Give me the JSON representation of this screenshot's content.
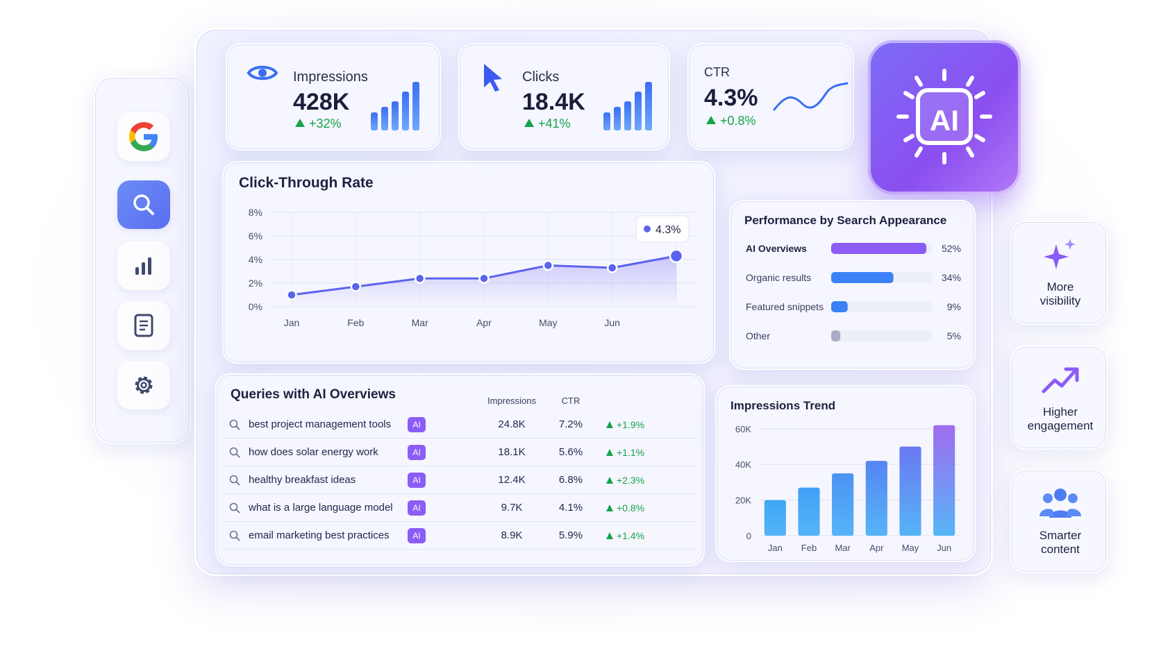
{
  "kpis": [
    {
      "label": "Impressions",
      "value": "428K",
      "change": "+32%"
    },
    {
      "label": "Clicks",
      "value": "18.4K",
      "change": "+41%"
    },
    {
      "label": "CTR",
      "value": "4.3%",
      "change": "+0.8%"
    }
  ],
  "ai_badge": "AI",
  "chart_data": [
    {
      "type": "line",
      "title": "Click-Through Rate",
      "categories": [
        "Jan",
        "Feb",
        "Mar",
        "Apr",
        "May",
        "Jun",
        null
      ],
      "values": [
        1.0,
        1.7,
        2.4,
        2.4,
        3.5,
        3.3,
        4.3
      ],
      "value_labels": [
        null,
        null,
        null,
        null,
        null,
        null,
        "4.3%"
      ],
      "color": "#5b63ee",
      "grid": true,
      "ylim": [
        0,
        8
      ],
      "yticks": [
        {
          "value": 0,
          "label": "0%"
        },
        {
          "value": 2,
          "label": "2%"
        },
        {
          "value": 4,
          "label": "4%"
        },
        {
          "value": 6,
          "label": "6%"
        },
        {
          "value": 8,
          "label": "8%"
        }
      ]
    },
    {
      "type": "hbar",
      "title": "Performance by Search Appearance",
      "categories": [
        "AI Overviews",
        "Organic results",
        "Featured snippets",
        "Other"
      ],
      "values": [
        52,
        34,
        9,
        5
      ],
      "value_labels": [
        "52%",
        "34%",
        "9%",
        "5%"
      ],
      "colors": [
        "#8b5cf6",
        "#3b82f6",
        "#3b82f6",
        "#a7adc4"
      ],
      "xlim": [
        0,
        55
      ]
    },
    {
      "type": "bar",
      "title": "Impressions Trend",
      "categories": [
        "Jan",
        "Feb",
        "Mar",
        "Apr",
        "May",
        "Jun"
      ],
      "values": [
        20000,
        27000,
        35000,
        42000,
        50000,
        62000
      ],
      "colors": [
        "#3aa8f5",
        "#42a0f5",
        "#4b93f4",
        "#5585f3",
        "#6a78f1",
        "#a06cf0"
      ],
      "grid": true,
      "ylim": [
        0,
        65000
      ],
      "yticks": [
        0,
        {
          "value": 20000,
          "label": "20K"
        },
        {
          "value": 40000,
          "label": "40K"
        },
        {
          "value": 60000,
          "label": "60K"
        }
      ]
    }
  ],
  "queries": {
    "title": "Queries with AI Overviews",
    "columns": [
      "Impressions",
      "CTR"
    ],
    "rows": [
      {
        "query": "best project management tools",
        "badge": "AI",
        "impressions": "24.8K",
        "ctr": "7.2%",
        "change": "+1.9%"
      },
      {
        "query": "how does solar energy work",
        "badge": "AI",
        "impressions": "18.1K",
        "ctr": "5.6%",
        "change": "+1.1%"
      },
      {
        "query": "healthy breakfast ideas",
        "badge": "AI",
        "impressions": "12.4K",
        "ctr": "6.8%",
        "change": "+2.3%"
      },
      {
        "query": "what is a large language model",
        "badge": "AI",
        "impressions": "9.7K",
        "ctr": "4.1%",
        "change": "+0.8%"
      },
      {
        "query": "email marketing best practices",
        "badge": "AI",
        "impressions": "8.9K",
        "ctr": "5.9%",
        "change": "+1.4%"
      }
    ]
  },
  "features": [
    "More visibility",
    "Higher engagement",
    "Smarter content"
  ]
}
